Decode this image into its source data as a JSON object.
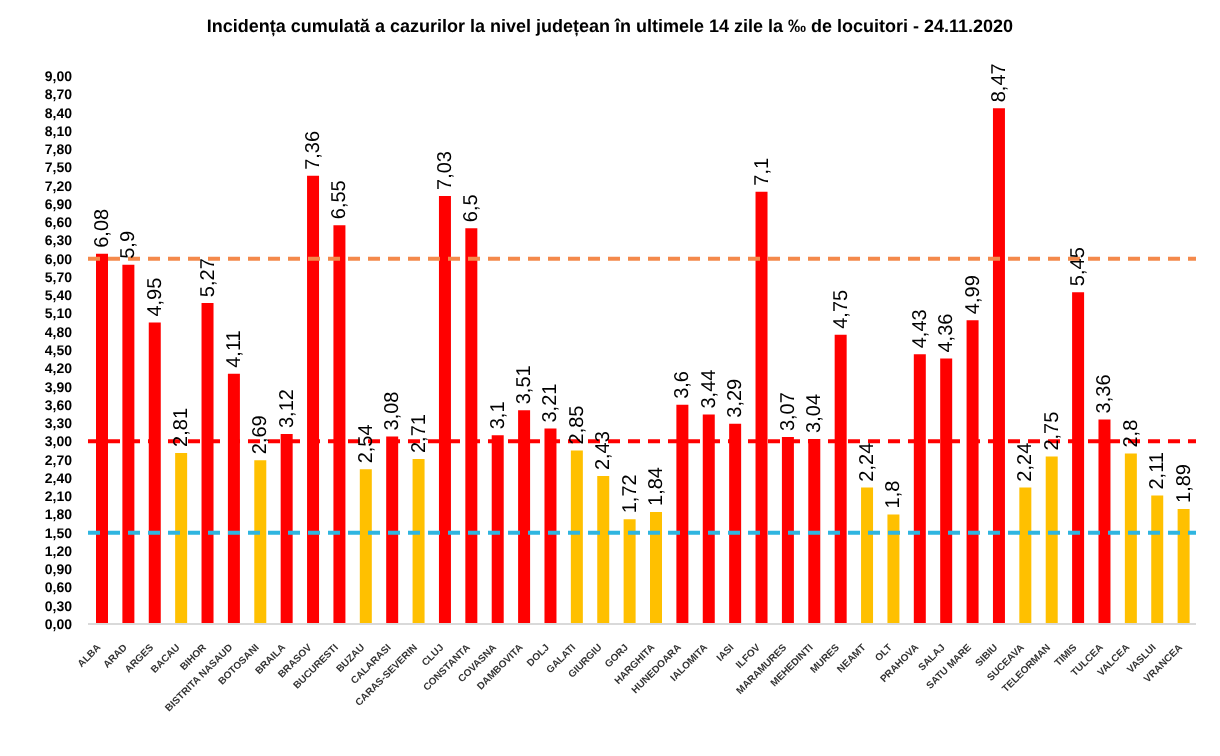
{
  "chart_data": {
    "type": "bar",
    "title": "Incidența cumulată a cazurilor la nivel județean în ultimele 14 zile la ‰ de locuitori - 24.11.2020",
    "categories": [
      "ALBA",
      "ARAD",
      "ARGES",
      "BACAU",
      "BIHOR",
      "BISTRITA NASAUD",
      "BOTOSANI",
      "BRAILA",
      "BRASOV",
      "BUCURESTI",
      "BUZAU",
      "CALARASI",
      "CARAS-SEVERIN",
      "CLUJ",
      "CONSTANTA",
      "COVASNA",
      "DAMBOVITA",
      "DOLJ",
      "GALATI",
      "GIURGIU",
      "GORJ",
      "HARGHITA",
      "HUNEDOARA",
      "IALOMITA",
      "IASI",
      "ILFOV",
      "MARAMURES",
      "MEHEDINTI",
      "MURES",
      "NEAMT",
      "OLT",
      "PRAHOVA",
      "SALAJ",
      "SATU MARE",
      "SIBIU",
      "SUCEAVA",
      "TELEORMAN",
      "TIMIS",
      "TULCEA",
      "VALCEA",
      "VASLUI",
      "VRANCEA"
    ],
    "values": [
      6.08,
      5.9,
      4.95,
      2.81,
      5.27,
      4.11,
      2.69,
      3.12,
      7.36,
      6.55,
      2.54,
      3.08,
      2.71,
      7.03,
      6.5,
      3.1,
      3.51,
      3.21,
      2.85,
      2.43,
      1.72,
      1.84,
      3.6,
      3.44,
      3.29,
      7.1,
      3.07,
      3.04,
      4.75,
      2.24,
      1.8,
      4.43,
      4.36,
      4.99,
      8.47,
      2.24,
      2.75,
      5.45,
      3.36,
      2.8,
      2.11,
      1.89
    ],
    "value_labels": [
      "6,08",
      "5,9",
      "4,95",
      "2,81",
      "5,27",
      "4,11",
      "2,69",
      "3,12",
      "7,36",
      "6,55",
      "2,54",
      "3,08",
      "2,71",
      "7,03",
      "6,5",
      "3,1",
      "3,51",
      "3,21",
      "2,85",
      "2,43",
      "1,72",
      "1,84",
      "3,6",
      "3,44",
      "3,29",
      "7,1",
      "3,07",
      "3,04",
      "4,75",
      "2,24",
      "1,8",
      "4,43",
      "4,36",
      "4,99",
      "8,47",
      "2,24",
      "2,75",
      "5,45",
      "3,36",
      "2,8",
      "2,11",
      "1,89"
    ],
    "colors": [
      "#ff0000",
      "#ff0000",
      "#ff0000",
      "#ffc000",
      "#ff0000",
      "#ff0000",
      "#ffc000",
      "#ff0000",
      "#ff0000",
      "#ff0000",
      "#ffc000",
      "#ff0000",
      "#ffc000",
      "#ff0000",
      "#ff0000",
      "#ff0000",
      "#ff0000",
      "#ff0000",
      "#ffc000",
      "#ffc000",
      "#ffc000",
      "#ffc000",
      "#ff0000",
      "#ff0000",
      "#ff0000",
      "#ff0000",
      "#ff0000",
      "#ff0000",
      "#ff0000",
      "#ffc000",
      "#ffc000",
      "#ff0000",
      "#ff0000",
      "#ff0000",
      "#ff0000",
      "#ffc000",
      "#ffc000",
      "#ff0000",
      "#ff0000",
      "#ffc000",
      "#ffc000",
      "#ffc000"
    ],
    "ylim": [
      0,
      9
    ],
    "yticks": [
      {
        "value": 0,
        "label": "0,00"
      },
      {
        "value": 0.3,
        "label": "0,30"
      },
      {
        "value": 0.6,
        "label": "0,60"
      },
      {
        "value": 0.9,
        "label": "0,90"
      },
      {
        "value": 1.2,
        "label": "1,20"
      },
      {
        "value": 1.5,
        "label": "1,50"
      },
      {
        "value": 1.8,
        "label": "1,80"
      },
      {
        "value": 2.1,
        "label": "2,10"
      },
      {
        "value": 2.4,
        "label": "2,40"
      },
      {
        "value": 2.7,
        "label": "2,70"
      },
      {
        "value": 3,
        "label": "3,00"
      },
      {
        "value": 3.3,
        "label": "3,30"
      },
      {
        "value": 3.6,
        "label": "3,60"
      },
      {
        "value": 3.9,
        "label": "3,90"
      },
      {
        "value": 4.2,
        "label": "4,20"
      },
      {
        "value": 4.5,
        "label": "4,50"
      },
      {
        "value": 4.8,
        "label": "4,80"
      },
      {
        "value": 5.1,
        "label": "5,10"
      },
      {
        "value": 5.4,
        "label": "5,40"
      },
      {
        "value": 5.7,
        "label": "5,70"
      },
      {
        "value": 6,
        "label": "6,00"
      },
      {
        "value": 6.3,
        "label": "6,30"
      },
      {
        "value": 6.6,
        "label": "6,60"
      },
      {
        "value": 6.9,
        "label": "6,90"
      },
      {
        "value": 7.2,
        "label": "7,20"
      },
      {
        "value": 7.5,
        "label": "7,50"
      },
      {
        "value": 7.8,
        "label": "7,80"
      },
      {
        "value": 8.1,
        "label": "8,10"
      },
      {
        "value": 8.4,
        "label": "8,40"
      },
      {
        "value": 8.7,
        "label": "8,70"
      },
      {
        "value": 9,
        "label": "9,00"
      }
    ],
    "ref_lines": [
      {
        "axis": "y",
        "value": 1.5,
        "color": "#2fb5e0",
        "line_style": "dashed"
      },
      {
        "axis": "y",
        "value": 3,
        "color": "#ff0000",
        "line_style": "dashed"
      },
      {
        "axis": "y",
        "value": 6,
        "color": "#f4894b",
        "line_style": "dashed"
      }
    ],
    "grid": false,
    "legend": false
  }
}
